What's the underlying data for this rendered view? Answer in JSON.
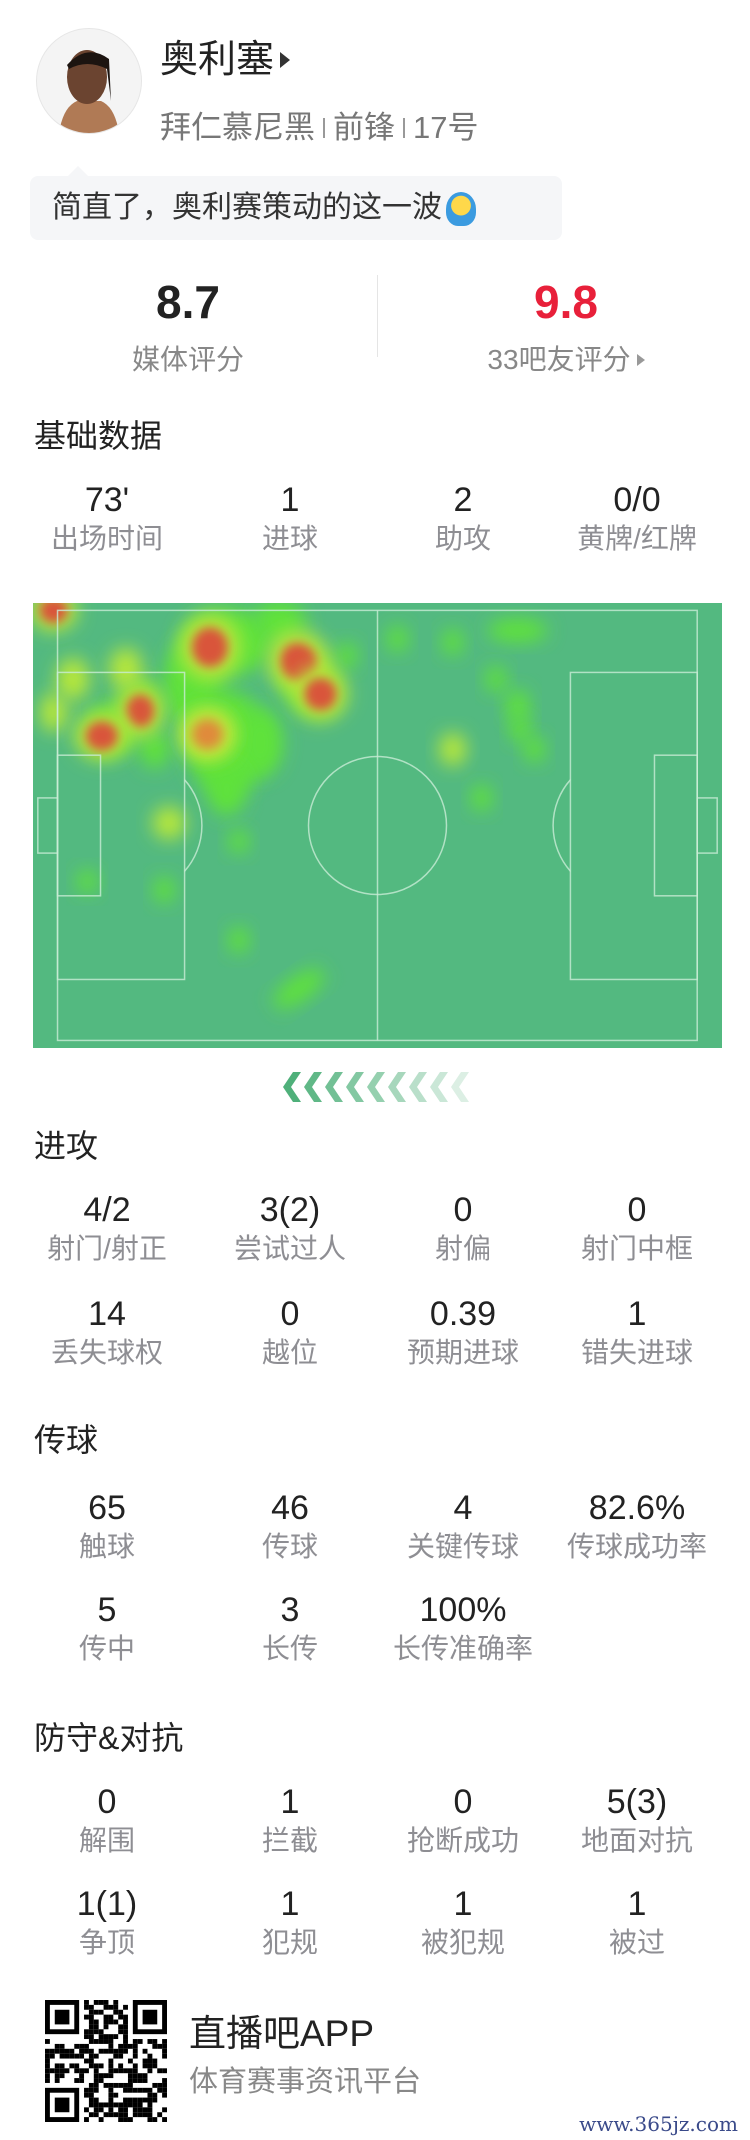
{
  "player": {
    "name": "奥利塞",
    "team": "拜仁慕尼黑",
    "position": "前锋",
    "number": "17号",
    "avatar_icon": "player-photo"
  },
  "comment": {
    "text": "简直了，奥利赛策动的这一波",
    "emoji_icon": "blushing-emoji"
  },
  "ratings": {
    "media": {
      "value": "8.7",
      "label": "媒体评分"
    },
    "fans": {
      "value": "9.8",
      "label": "33吧友评分",
      "color": "#e8203a"
    }
  },
  "sections": [
    {
      "title": "基础数据",
      "rows": [
        [
          {
            "value": "73'",
            "label": "出场时间"
          },
          {
            "value": "1",
            "label": "进球"
          },
          {
            "value": "2",
            "label": "助攻"
          },
          {
            "value": "0/0",
            "label": "黄牌/红牌"
          }
        ]
      ]
    },
    {
      "title": "进攻",
      "rows": [
        [
          {
            "value": "4/2",
            "label": "射门/射正"
          },
          {
            "value": "3(2)",
            "label": "尝试过人"
          },
          {
            "value": "0",
            "label": "射偏"
          },
          {
            "value": "0",
            "label": "射门中框"
          }
        ],
        [
          {
            "value": "14",
            "label": "丢失球权"
          },
          {
            "value": "0",
            "label": "越位"
          },
          {
            "value": "0.39",
            "label": "预期进球"
          },
          {
            "value": "1",
            "label": "错失进球"
          }
        ]
      ]
    },
    {
      "title": "传球",
      "rows": [
        [
          {
            "value": "65",
            "label": "触球"
          },
          {
            "value": "46",
            "label": "传球"
          },
          {
            "value": "4",
            "label": "关键传球"
          },
          {
            "value": "82.6%",
            "label": "传球成功率"
          }
        ],
        [
          {
            "value": "5",
            "label": "传中"
          },
          {
            "value": "3",
            "label": "长传"
          },
          {
            "value": "100%",
            "label": "长传准确率"
          }
        ]
      ]
    },
    {
      "title": "防守&对抗",
      "rows": [
        [
          {
            "value": "0",
            "label": "解围"
          },
          {
            "value": "1",
            "label": "拦截"
          },
          {
            "value": "0",
            "label": "抢断成功"
          },
          {
            "value": "5(3)",
            "label": "地面对抗"
          }
        ],
        [
          {
            "value": "1(1)",
            "label": "争顶"
          },
          {
            "value": "1",
            "label": "犯规"
          },
          {
            "value": "1",
            "label": "被犯规"
          },
          {
            "value": "1",
            "label": "被过"
          }
        ]
      ]
    }
  ],
  "heatmap": {
    "pitch_color": "#53b980",
    "attack_direction": "left",
    "chevron_color": "#4fb07a"
  },
  "footer": {
    "app_name": "直播吧APP",
    "tagline": "体育赛事资讯平台",
    "qr_icon": "qr-code"
  },
  "watermark": "www.365jz.com"
}
